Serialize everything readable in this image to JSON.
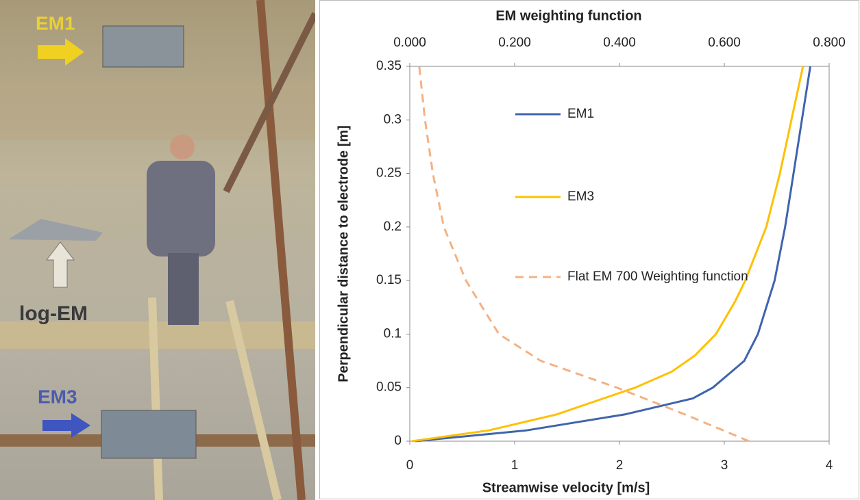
{
  "photo_labels": [
    "EM1",
    "log-EM",
    "EM3"
  ],
  "chart_data": {
    "type": "line",
    "title": "EM weighting function",
    "x_label": "Streamwise velocity  [m/s]",
    "y_label": "Perpendicular distance to electrode [m]",
    "xlim": [
      0,
      4
    ],
    "xticks": [
      0,
      1,
      2,
      3,
      4
    ],
    "x2lim": [
      0,
      0.8
    ],
    "x2ticks": [
      {
        "value": 0,
        "label": "0.000"
      },
      {
        "value": 0.2,
        "label": "0.200"
      },
      {
        "value": 0.4,
        "label": "0.400"
      },
      {
        "value": 0.6,
        "label": "0.600"
      },
      {
        "value": 0.8,
        "label": "0.800"
      }
    ],
    "ylim": [
      0,
      0.35
    ],
    "yticks": [
      0,
      0.05,
      0.1,
      0.15,
      0.2,
      0.25,
      0.3,
      0.35
    ],
    "grid": false,
    "series": [
      {
        "name": "EM1",
        "color": "#3f64ad",
        "dash": false,
        "x": [
          0.05,
          1.11,
          2.05,
          2.7,
          2.89,
          3.19,
          3.32,
          3.48,
          3.58,
          3.66,
          3.74,
          3.82
        ],
        "values": [
          0,
          0.01,
          0.025,
          0.04,
          0.05,
          0.075,
          0.1,
          0.15,
          0.2,
          0.25,
          0.3,
          0.35
        ]
      },
      {
        "name": "EM3",
        "color": "#ffc000",
        "dash": false,
        "x": [
          0.02,
          0.75,
          1.4,
          2.15,
          2.5,
          2.72,
          2.92,
          3.1,
          3.2,
          3.4,
          3.53,
          3.64,
          3.75
        ],
        "values": [
          0,
          0.01,
          0.025,
          0.05,
          0.065,
          0.08,
          0.1,
          0.13,
          0.15,
          0.2,
          0.25,
          0.3,
          0.35
        ]
      },
      {
        "name": "Flat EM 700 Weighting function",
        "color": "#f4b183",
        "dash": true,
        "axis": "x2",
        "x": [
          0.647,
          0.525,
          0.395,
          0.25,
          0.17,
          0.107,
          0.065,
          0.044,
          0.029,
          0.018
        ],
        "values": [
          0,
          0.025,
          0.05,
          0.075,
          0.1,
          0.15,
          0.2,
          0.25,
          0.3,
          0.35
        ]
      }
    ]
  }
}
